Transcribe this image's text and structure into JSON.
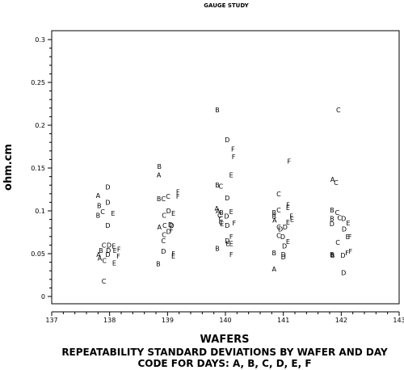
{
  "chart_data": {
    "type": "scatter",
    "title": "GAUGE STUDY",
    "xlabel": "WAFERS",
    "ylabel": "ohm.cm",
    "caption_lines": [
      "REPEATABILITY STANDARD DEVIATIONS BY WAFER AND DAY",
      "CODE FOR DAYS: A, B, C, D, E, F"
    ],
    "xlim": [
      137,
      143
    ],
    "ylim": [
      0,
      0.3
    ],
    "x_ticks": [
      "137",
      "138",
      "139",
      "140",
      "141",
      "142",
      "143"
    ],
    "y_ticks": [
      "0",
      "0.05",
      "0.1",
      "0.15",
      "0.2",
      "0.25",
      "0.3"
    ],
    "grid": false,
    "marker_style": "letter",
    "points": [
      {
        "x": 137.8,
        "y": 0.118,
        "label": "A"
      },
      {
        "x": 137.82,
        "y": 0.106,
        "label": "B"
      },
      {
        "x": 137.8,
        "y": 0.095,
        "label": "B"
      },
      {
        "x": 137.88,
        "y": 0.099,
        "label": "C"
      },
      {
        "x": 137.97,
        "y": 0.128,
        "label": "D"
      },
      {
        "x": 137.97,
        "y": 0.11,
        "label": "D"
      },
      {
        "x": 138.06,
        "y": 0.097,
        "label": "E"
      },
      {
        "x": 137.97,
        "y": 0.083,
        "label": "D"
      },
      {
        "x": 137.81,
        "y": 0.049,
        "label": "A"
      },
      {
        "x": 137.83,
        "y": 0.045,
        "label": "A"
      },
      {
        "x": 137.85,
        "y": 0.054,
        "label": "B"
      },
      {
        "x": 137.9,
        "y": 0.06,
        "label": "C"
      },
      {
        "x": 137.91,
        "y": 0.042,
        "label": "C"
      },
      {
        "x": 137.97,
        "y": 0.049,
        "label": "D"
      },
      {
        "x": 137.98,
        "y": 0.054,
        "label": "D"
      },
      {
        "x": 137.99,
        "y": 0.06,
        "label": "D"
      },
      {
        "x": 138.07,
        "y": 0.059,
        "label": "E"
      },
      {
        "x": 138.09,
        "y": 0.054,
        "label": "E"
      },
      {
        "x": 138.08,
        "y": 0.039,
        "label": "E"
      },
      {
        "x": 138.16,
        "y": 0.055,
        "label": "F"
      },
      {
        "x": 138.15,
        "y": 0.047,
        "label": "F"
      },
      {
        "x": 137.9,
        "y": 0.018,
        "label": "C"
      },
      {
        "x": 138.86,
        "y": 0.152,
        "label": "B"
      },
      {
        "x": 138.85,
        "y": 0.142,
        "label": "A"
      },
      {
        "x": 138.85,
        "y": 0.114,
        "label": "B"
      },
      {
        "x": 138.93,
        "y": 0.114,
        "label": "C"
      },
      {
        "x": 139.01,
        "y": 0.117,
        "label": "C"
      },
      {
        "x": 139.18,
        "y": 0.122,
        "label": "F"
      },
      {
        "x": 139.18,
        "y": 0.117,
        "label": "F"
      },
      {
        "x": 139.02,
        "y": 0.1,
        "label": "D"
      },
      {
        "x": 139.1,
        "y": 0.097,
        "label": "E"
      },
      {
        "x": 138.94,
        "y": 0.095,
        "label": "C"
      },
      {
        "x": 138.86,
        "y": 0.081,
        "label": "A"
      },
      {
        "x": 138.95,
        "y": 0.083,
        "label": "C"
      },
      {
        "x": 139.05,
        "y": 0.084,
        "label": "D"
      },
      {
        "x": 139.07,
        "y": 0.083,
        "label": "D"
      },
      {
        "x": 139.07,
        "y": 0.078,
        "label": "F"
      },
      {
        "x": 139.02,
        "y": 0.076,
        "label": "D"
      },
      {
        "x": 138.94,
        "y": 0.072,
        "label": "C"
      },
      {
        "x": 138.93,
        "y": 0.065,
        "label": "C"
      },
      {
        "x": 138.93,
        "y": 0.053,
        "label": "D"
      },
      {
        "x": 139.1,
        "y": 0.05,
        "label": "F"
      },
      {
        "x": 139.1,
        "y": 0.047,
        "label": "E"
      },
      {
        "x": 138.84,
        "y": 0.038,
        "label": "B"
      },
      {
        "x": 139.86,
        "y": 0.218,
        "label": "B"
      },
      {
        "x": 140.03,
        "y": 0.183,
        "label": "D"
      },
      {
        "x": 140.13,
        "y": 0.172,
        "label": "F"
      },
      {
        "x": 140.14,
        "y": 0.163,
        "label": "F"
      },
      {
        "x": 140.1,
        "y": 0.142,
        "label": "E"
      },
      {
        "x": 139.86,
        "y": 0.13,
        "label": "B"
      },
      {
        "x": 139.92,
        "y": 0.129,
        "label": "C"
      },
      {
        "x": 140.03,
        "y": 0.115,
        "label": "D"
      },
      {
        "x": 139.85,
        "y": 0.103,
        "label": "A"
      },
      {
        "x": 139.87,
        "y": 0.1,
        "label": "A"
      },
      {
        "x": 139.93,
        "y": 0.098,
        "label": "B"
      },
      {
        "x": 139.9,
        "y": 0.095,
        "label": "C"
      },
      {
        "x": 139.92,
        "y": 0.091,
        "label": "C"
      },
      {
        "x": 139.92,
        "y": 0.087,
        "label": "C"
      },
      {
        "x": 140.02,
        "y": 0.094,
        "label": "D"
      },
      {
        "x": 140.1,
        "y": 0.099,
        "label": "E"
      },
      {
        "x": 139.94,
        "y": 0.085,
        "label": "E"
      },
      {
        "x": 140.03,
        "y": 0.083,
        "label": "D"
      },
      {
        "x": 140.15,
        "y": 0.086,
        "label": "F"
      },
      {
        "x": 140.1,
        "y": 0.07,
        "label": "F"
      },
      {
        "x": 140.03,
        "y": 0.065,
        "label": "D"
      },
      {
        "x": 140.04,
        "y": 0.062,
        "label": "E"
      },
      {
        "x": 140.1,
        "y": 0.062,
        "label": "E"
      },
      {
        "x": 139.86,
        "y": 0.056,
        "label": "B"
      },
      {
        "x": 140.1,
        "y": 0.049,
        "label": "F"
      },
      {
        "x": 140.92,
        "y": 0.12,
        "label": "C"
      },
      {
        "x": 141.1,
        "y": 0.158,
        "label": "F"
      },
      {
        "x": 141.08,
        "y": 0.107,
        "label": "F"
      },
      {
        "x": 141.08,
        "y": 0.104,
        "label": "E"
      },
      {
        "x": 140.84,
        "y": 0.098,
        "label": "B"
      },
      {
        "x": 140.92,
        "y": 0.101,
        "label": "C"
      },
      {
        "x": 141.14,
        "y": 0.094,
        "label": "F"
      },
      {
        "x": 141.15,
        "y": 0.09,
        "label": "E"
      },
      {
        "x": 140.84,
        "y": 0.094,
        "label": "B"
      },
      {
        "x": 140.85,
        "y": 0.089,
        "label": "A"
      },
      {
        "x": 141.08,
        "y": 0.087,
        "label": "E"
      },
      {
        "x": 140.92,
        "y": 0.081,
        "label": "C"
      },
      {
        "x": 140.95,
        "y": 0.079,
        "label": "D"
      },
      {
        "x": 141.03,
        "y": 0.081,
        "label": "D"
      },
      {
        "x": 140.92,
        "y": 0.071,
        "label": "C"
      },
      {
        "x": 140.99,
        "y": 0.07,
        "label": "D"
      },
      {
        "x": 141.08,
        "y": 0.064,
        "label": "E"
      },
      {
        "x": 141.02,
        "y": 0.059,
        "label": "D"
      },
      {
        "x": 140.84,
        "y": 0.051,
        "label": "B"
      },
      {
        "x": 141.0,
        "y": 0.049,
        "label": "D"
      },
      {
        "x": 141.0,
        "y": 0.046,
        "label": "D"
      },
      {
        "x": 140.84,
        "y": 0.032,
        "label": "A"
      },
      {
        "x": 141.95,
        "y": 0.218,
        "label": "C"
      },
      {
        "x": 141.85,
        "y": 0.137,
        "label": "A"
      },
      {
        "x": 141.91,
        "y": 0.133,
        "label": "C"
      },
      {
        "x": 141.84,
        "y": 0.101,
        "label": "B"
      },
      {
        "x": 141.93,
        "y": 0.098,
        "label": "C"
      },
      {
        "x": 141.84,
        "y": 0.091,
        "label": "B"
      },
      {
        "x": 141.97,
        "y": 0.092,
        "label": "C"
      },
      {
        "x": 142.04,
        "y": 0.091,
        "label": "D"
      },
      {
        "x": 141.84,
        "y": 0.085,
        "label": "D"
      },
      {
        "x": 142.12,
        "y": 0.086,
        "label": "E"
      },
      {
        "x": 142.05,
        "y": 0.079,
        "label": "D"
      },
      {
        "x": 142.11,
        "y": 0.07,
        "label": "E"
      },
      {
        "x": 142.15,
        "y": 0.07,
        "label": "F"
      },
      {
        "x": 141.94,
        "y": 0.063,
        "label": "C"
      },
      {
        "x": 141.84,
        "y": 0.049,
        "label": "B"
      },
      {
        "x": 141.85,
        "y": 0.048,
        "label": "B"
      },
      {
        "x": 142.03,
        "y": 0.048,
        "label": "D"
      },
      {
        "x": 142.1,
        "y": 0.051,
        "label": "F"
      },
      {
        "x": 142.16,
        "y": 0.053,
        "label": "F"
      },
      {
        "x": 142.04,
        "y": 0.028,
        "label": "D"
      }
    ]
  }
}
